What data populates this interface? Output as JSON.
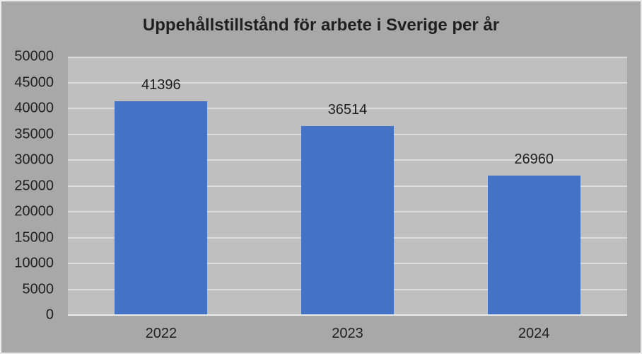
{
  "window": {
    "background": "#a8a8a8",
    "border_color": "#ececec"
  },
  "chart_data": {
    "type": "bar",
    "title": "Uppehållstillstånd för arbete i Sverige per år",
    "categories": [
      "2022",
      "2023",
      "2024"
    ],
    "values": [
      41396,
      36514,
      26960
    ],
    "data_labels": [
      "41396",
      "36514",
      "26960"
    ],
    "xlabel": "",
    "ylabel": "",
    "ylim": [
      0,
      50000
    ],
    "ytick_step": 5000,
    "ytick_labels": [
      "0",
      "5000",
      "10000",
      "15000",
      "20000",
      "25000",
      "30000",
      "35000",
      "40000",
      "45000",
      "50000"
    ],
    "grid": true,
    "legend": false,
    "colors": {
      "bar": "#4472c4",
      "plot_background": "#bfbfbf",
      "gridline": "#dcdcdc",
      "axis_line": "#ececec",
      "text": "#1f1f1f"
    }
  }
}
